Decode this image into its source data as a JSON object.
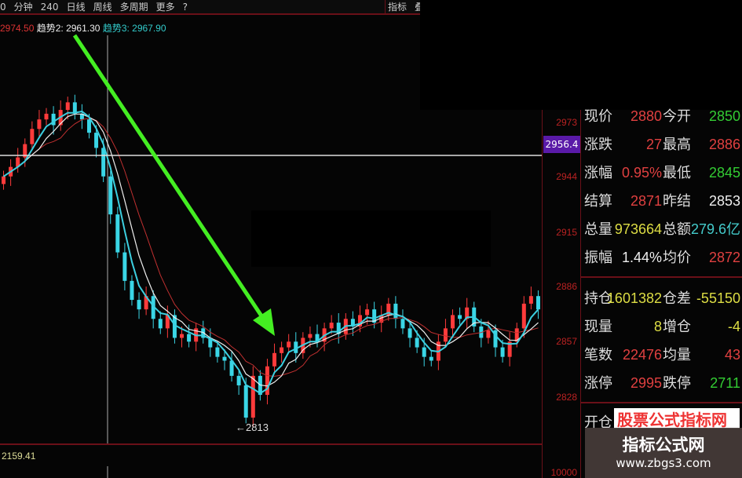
{
  "toolbar": {
    "items": [
      "0",
      "分钟",
      "240",
      "日线",
      "周线",
      "多周期",
      "更多",
      "?"
    ],
    "right": [
      "指标",
      "叠"
    ]
  },
  "legend": {
    "value0": "2974.50",
    "trend2": "趋势2: 2961.30",
    "trend3": "趋势3: 2967.90"
  },
  "price_axis": {
    "ticks": [
      "2973",
      "2944",
      "2915",
      "2886",
      "2857",
      "2828"
    ],
    "current": "2956.4",
    "bottom": "10000"
  },
  "chart": {
    "low_label": "←2813",
    "volume_value": "2159.41",
    "up_color": "#ff3b3b",
    "down_color": "#3ad6e6",
    "arrow_color": "#44ee22",
    "closes": [
      2945,
      2950,
      2955,
      2962,
      2970,
      2975,
      2978,
      2972,
      2980,
      2984,
      2978,
      2975,
      2968,
      2960,
      2945,
      2925,
      2905,
      2890,
      2880,
      2875,
      2882,
      2870,
      2865,
      2872,
      2860,
      2862,
      2858,
      2865,
      2860,
      2855,
      2850,
      2848,
      2840,
      2835,
      2818,
      2840,
      2830,
      2845,
      2852,
      2855,
      2858,
      2852,
      2860,
      2862,
      2858,
      2865,
      2868,
      2862,
      2870,
      2866,
      2872,
      2875,
      2868,
      2872,
      2878,
      2870,
      2865,
      2860,
      2855,
      2850,
      2848,
      2858,
      2865,
      2872,
      2870,
      2876,
      2866,
      2860,
      2864,
      2855,
      2850,
      2858,
      2865,
      2878,
      2882,
      2875
    ]
  },
  "quote": {
    "rows": [
      {
        "l1": "现价",
        "v1": "2880",
        "c1": "#e04040",
        "l2": "今开",
        "v2": "2850",
        "c2": "#3c3"
      },
      {
        "l1": "涨跌",
        "v1": "27",
        "c1": "#e04040",
        "l2": "最高",
        "v2": "2886",
        "c2": "#e04040"
      },
      {
        "l1": "涨幅",
        "v1": "0.95%",
        "c1": "#e04040",
        "l2": "最低",
        "v2": "2845",
        "c2": "#3c3"
      },
      {
        "l1": "结算",
        "v1": "2871",
        "c1": "#e04040",
        "l2": "昨结",
        "v2": "2853",
        "c2": "#eee"
      },
      {
        "l1": "总量",
        "v1": "973664",
        "c1": "#dd4",
        "l2": "总额",
        "v2": "279.6亿",
        "c2": "#4cc"
      },
      {
        "l1": "振幅",
        "v1": "1.44%",
        "c1": "#eee",
        "l2": "均价",
        "v2": "2872",
        "c2": "#e04040"
      }
    ],
    "rows2": [
      {
        "l1": "持仓",
        "v1": "1601382",
        "c1": "#dd4",
        "l2": "仓差",
        "v2": "-55150",
        "c2": "#dd4"
      },
      {
        "l1": "现量",
        "v1": "8",
        "c1": "#dd4",
        "l2": "增仓",
        "v2": "-4",
        "c2": "#dd4"
      },
      {
        "l1": "笔数",
        "v1": "22476",
        "c1": "#e04040",
        "l2": "均量",
        "v2": "43",
        "c2": "#e04040"
      },
      {
        "l1": "涨停",
        "v1": "2995",
        "c1": "#e04040",
        "l2": "跌停",
        "v2": "2711",
        "c2": "#3c3"
      }
    ],
    "open_label": "开仓"
  },
  "watermark": {
    "logo": "股票公式指标网",
    "title": "指标公式网",
    "url": "www.zbgs3.com"
  }
}
